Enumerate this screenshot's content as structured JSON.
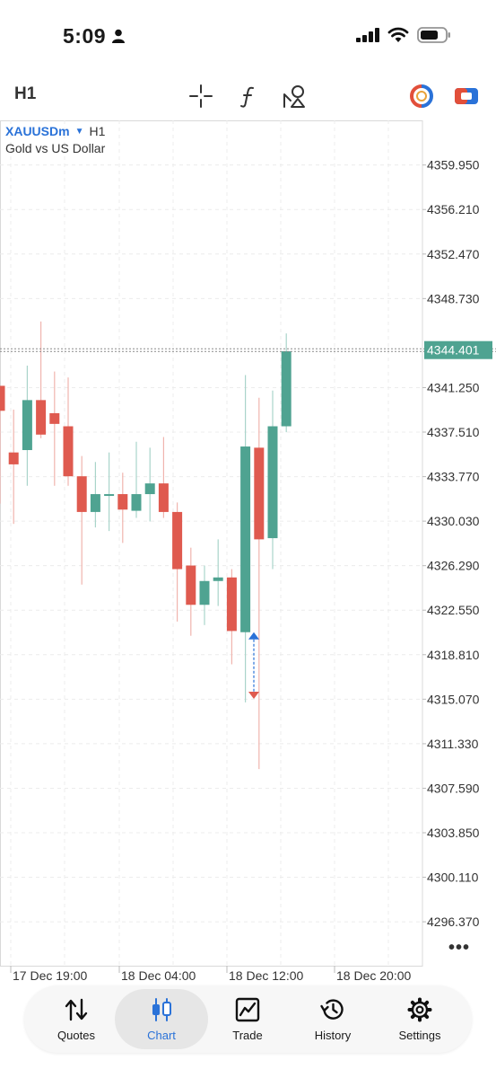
{
  "status_bar": {
    "time": "5:09"
  },
  "toolbar": {
    "timeframe": "H1",
    "icons": [
      "crosshair-icon",
      "indicators-icon",
      "objects-icon",
      "one-click-trading-icon",
      "trade-icon"
    ]
  },
  "chart_header": {
    "symbol": "XAUUSDm",
    "timeframe": "H1",
    "description": "Gold vs US Dollar"
  },
  "chart_data": {
    "type": "candlestick",
    "symbol": "XAUUSDm",
    "current_price": "4344.401",
    "price_labels": [
      "4359.950",
      "4356.210",
      "4352.470",
      "4348.730",
      "4341.250",
      "4337.510",
      "4333.770",
      "4330.030",
      "4326.290",
      "4322.550",
      "4318.810",
      "4315.070",
      "4311.330",
      "4307.590",
      "4303.850",
      "4300.110",
      "4296.370"
    ],
    "price_levels": [
      4359.95,
      4356.21,
      4352.47,
      4348.73,
      4341.25,
      4337.51,
      4333.77,
      4330.03,
      4326.29,
      4322.55,
      4318.81,
      4315.07,
      4311.33,
      4307.59,
      4303.85,
      4300.11,
      4296.37
    ],
    "time_labels": [
      "17 Dec 19:00",
      "18 Dec 04:00",
      "18 Dec 12:00",
      "18 Dec 20:00"
    ],
    "ylim": [
      4292.68,
      4363.7
    ],
    "colors": {
      "up": "#4fa391",
      "down": "#df5a4f",
      "price_tag": "#4fa391"
    },
    "candles": [
      {
        "o": 4341.4,
        "h": 4341.4,
        "l": 4331.5,
        "c": 4339.3
      },
      {
        "o": 4335.8,
        "h": 4339.4,
        "l": 4329.8,
        "c": 4334.8
      },
      {
        "o": 4336.0,
        "h": 4343.1,
        "l": 4333.0,
        "c": 4340.2
      },
      {
        "o": 4340.2,
        "h": 4346.8,
        "l": 4337.0,
        "c": 4337.3
      },
      {
        "o": 4339.1,
        "h": 4342.6,
        "l": 4333.0,
        "c": 4338.2
      },
      {
        "o": 4338.0,
        "h": 4342.1,
        "l": 4333.0,
        "c": 4333.8
      },
      {
        "o": 4333.8,
        "h": 4335.5,
        "l": 4324.7,
        "c": 4330.8
      },
      {
        "o": 4330.8,
        "h": 4335.0,
        "l": 4329.5,
        "c": 4332.3
      },
      {
        "o": 4332.3,
        "h": 4335.8,
        "l": 4329.2,
        "c": 4332.3
      },
      {
        "o": 4332.3,
        "h": 4334.1,
        "l": 4328.2,
        "c": 4331.0
      },
      {
        "o": 4330.9,
        "h": 4336.7,
        "l": 4330.3,
        "c": 4332.3
      },
      {
        "o": 4332.3,
        "h": 4336.2,
        "l": 4330.0,
        "c": 4333.2
      },
      {
        "o": 4333.2,
        "h": 4337.1,
        "l": 4330.3,
        "c": 4330.8
      },
      {
        "o": 4330.8,
        "h": 4331.6,
        "l": 4321.6,
        "c": 4326.0
      },
      {
        "o": 4326.3,
        "h": 4327.8,
        "l": 4320.4,
        "c": 4323.0
      },
      {
        "o": 4323.0,
        "h": 4326.3,
        "l": 4321.3,
        "c": 4325.0
      },
      {
        "o": 4325.0,
        "h": 4328.5,
        "l": 4322.9,
        "c": 4325.3
      },
      {
        "o": 4325.3,
        "h": 4326.0,
        "l": 4318.0,
        "c": 4320.8
      },
      {
        "o": 4320.7,
        "h": 4342.3,
        "l": 4314.8,
        "c": 4336.3
      },
      {
        "o": 4336.2,
        "h": 4340.4,
        "l": 4309.2,
        "c": 4328.5
      },
      {
        "o": 4328.6,
        "h": 4341.0,
        "l": 4326.0,
        "c": 4338.0
      },
      {
        "o": 4338.0,
        "h": 4345.8,
        "l": 4337.5,
        "c": 4344.3
      }
    ],
    "trade_marker": {
      "buy_price": 4320.4,
      "sell_price": 4315.4
    }
  },
  "bottom_nav": {
    "items": [
      {
        "label": "Quotes",
        "icon": "quotes-icon"
      },
      {
        "label": "Chart",
        "icon": "chart-icon",
        "active": true
      },
      {
        "label": "Trade",
        "icon": "trade-chart-icon"
      },
      {
        "label": "History",
        "icon": "history-icon"
      },
      {
        "label": "Settings",
        "icon": "settings-gear-icon"
      }
    ]
  }
}
